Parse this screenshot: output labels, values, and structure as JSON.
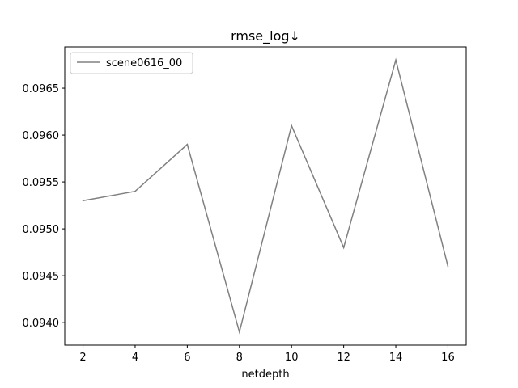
{
  "chart_data": {
    "type": "line",
    "title": "rmse_log↓",
    "xlabel": "netdepth",
    "ylabel": "",
    "x": [
      2,
      4,
      6,
      8,
      10,
      12,
      14,
      16
    ],
    "series": [
      {
        "name": "scene0616_00",
        "color": "#808080",
        "values": [
          0.0953,
          0.0954,
          0.0959,
          0.0939,
          0.0961,
          0.0948,
          0.0968,
          0.0946
        ]
      }
    ],
    "xlim": [
      1.3,
      16.7
    ],
    "ylim": [
      0.09376,
      0.09694
    ],
    "xticks": [
      2,
      4,
      6,
      8,
      10,
      12,
      14,
      16
    ],
    "xtick_labels": [
      "2",
      "4",
      "6",
      "8",
      "10",
      "12",
      "14",
      "16"
    ],
    "yticks": [
      0.094,
      0.0945,
      0.095,
      0.0955,
      0.096,
      0.0965
    ],
    "ytick_labels": [
      "0.0940",
      "0.0945",
      "0.0950",
      "0.0955",
      "0.0960",
      "0.0965"
    ],
    "legend_position": "top-left",
    "grid": false
  }
}
